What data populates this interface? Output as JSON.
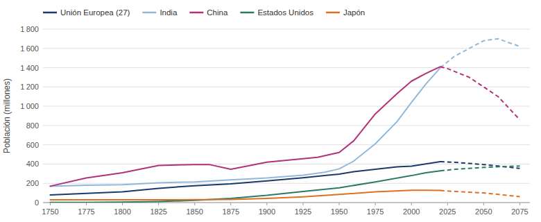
{
  "chart_data": {
    "type": "line",
    "ylabel": "Población (millones)",
    "xlim": [
      1745,
      2082
    ],
    "xticks": [
      1750,
      1775,
      1800,
      1825,
      1850,
      1875,
      1900,
      1925,
      1950,
      1975,
      2000,
      2025,
      2050,
      2075
    ],
    "ylim": [
      0,
      1800
    ],
    "yticks": [
      0,
      200,
      400,
      600,
      800,
      {
        "value": 1000,
        "label": "1 000"
      },
      {
        "value": 1200,
        "label": "1 200"
      },
      {
        "value": 1400,
        "label": "1 400"
      },
      {
        "value": 1600,
        "label": "1 600"
      },
      {
        "value": 1800,
        "label": "1 800"
      }
    ],
    "grid": true,
    "legend": "top-left",
    "series": [
      {
        "name": "Unión Europea (27)",
        "color": "#1b3a6b",
        "line_style": "solid",
        "x": [
          1750,
          1775,
          1800,
          1825,
          1850,
          1875,
          1900,
          1925,
          1940,
          1950,
          1960,
          1975,
          1990,
          2000,
          2010,
          2020
        ],
        "values": [
          80,
          95,
          112,
          148,
          175,
          195,
          225,
          258,
          280,
          295,
          320,
          345,
          370,
          378,
          402,
          425
        ]
      },
      {
        "color": "#1b3a6b",
        "line_style": "dashed",
        "x": [
          2020,
          2030,
          2050,
          2075
        ],
        "values": [
          425,
          418,
          395,
          355
        ]
      },
      {
        "name": "India",
        "color": "#92b8d8",
        "line_style": "solid",
        "x": [
          1750,
          1775,
          1800,
          1825,
          1850,
          1875,
          1900,
          1925,
          1940,
          1950,
          1960,
          1975,
          1990,
          2000,
          2010,
          2020
        ],
        "values": [
          170,
          180,
          185,
          205,
          215,
          235,
          255,
          285,
          315,
          350,
          430,
          610,
          840,
          1040,
          1230,
          1400
        ]
      },
      {
        "color": "#92b8d8",
        "line_style": "dashed",
        "x": [
          2020,
          2030,
          2050,
          2060,
          2075
        ],
        "values": [
          1400,
          1520,
          1680,
          1700,
          1620
        ]
      },
      {
        "name": "China",
        "color": "#b03278",
        "line_style": "solid",
        "x": [
          1750,
          1775,
          1800,
          1825,
          1850,
          1860,
          1875,
          1900,
          1925,
          1935,
          1950,
          1960,
          1975,
          1990,
          2000,
          2010,
          2020
        ],
        "values": [
          170,
          255,
          310,
          385,
          395,
          395,
          345,
          420,
          455,
          470,
          520,
          640,
          920,
          1130,
          1260,
          1340,
          1410
        ]
      },
      {
        "color": "#b03278",
        "line_style": "dashed",
        "x": [
          2020,
          2025,
          2040,
          2060,
          2075
        ],
        "values": [
          1410,
          1390,
          1300,
          1100,
          860
        ]
      },
      {
        "name": "Estados Unidos",
        "color": "#2a7a6a",
        "line_style": "solid",
        "x": [
          1750,
          1775,
          1800,
          1825,
          1850,
          1875,
          1900,
          1925,
          1950,
          1975,
          2000,
          2010,
          2020
        ],
        "values": [
          1,
          2,
          5,
          11,
          23,
          44,
          75,
          115,
          153,
          215,
          280,
          310,
          330
        ]
      },
      {
        "color": "#2a7a6a",
        "line_style": "dashed",
        "x": [
          2020,
          2030,
          2050,
          2075
        ],
        "values": [
          330,
          345,
          365,
          380
        ]
      },
      {
        "name": "Japón",
        "color": "#e07020",
        "line_style": "solid",
        "x": [
          1750,
          1775,
          1800,
          1825,
          1850,
          1875,
          1900,
          1925,
          1950,
          1975,
          2000,
          2010,
          2020
        ],
        "values": [
          28,
          28,
          29,
          29,
          30,
          32,
          44,
          60,
          84,
          112,
          127,
          128,
          126
        ]
      },
      {
        "color": "#e07020",
        "line_style": "dashed",
        "x": [
          2020,
          2025,
          2040,
          2050,
          2075
        ],
        "values": [
          126,
          120,
          108,
          100,
          62
        ]
      }
    ]
  }
}
